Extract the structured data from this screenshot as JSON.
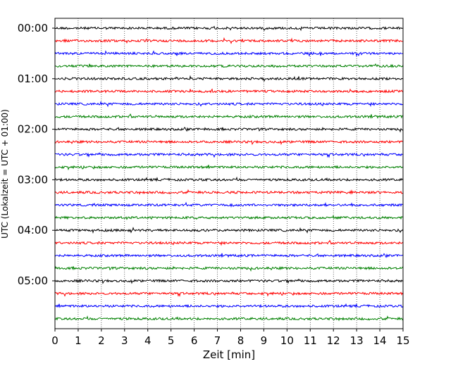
{
  "chart_data": {
    "type": "line",
    "title": "",
    "xlabel": "Zeit  [min]",
    "ylabel": "UTC (Lokalzeit = UTC + 01:00)",
    "xlim": [
      0,
      15
    ],
    "x_ticks": [
      "0",
      "1",
      "2",
      "3",
      "4",
      "5",
      "6",
      "7",
      "8",
      "9",
      "10",
      "11",
      "12",
      "13",
      "14",
      "15"
    ],
    "y_ticks": [
      "00:00",
      "01:00",
      "02:00",
      "03:00",
      "04:00",
      "05:00"
    ],
    "grid": "vertical dotted lines at each minute",
    "legend": "none",
    "trace_interval_min": 15,
    "trace_count": 24,
    "trace_color_cycle": [
      "#000000",
      "#ff0000",
      "#0000ff",
      "#008000"
    ],
    "series": [
      {
        "start": "00:00",
        "color": "#000000"
      },
      {
        "start": "00:15",
        "color": "#ff0000"
      },
      {
        "start": "00:30",
        "color": "#0000ff"
      },
      {
        "start": "00:45",
        "color": "#008000"
      },
      {
        "start": "01:00",
        "color": "#000000"
      },
      {
        "start": "01:15",
        "color": "#ff0000"
      },
      {
        "start": "01:30",
        "color": "#0000ff"
      },
      {
        "start": "01:45",
        "color": "#008000"
      },
      {
        "start": "02:00",
        "color": "#000000"
      },
      {
        "start": "02:15",
        "color": "#ff0000"
      },
      {
        "start": "02:30",
        "color": "#0000ff"
      },
      {
        "start": "02:45",
        "color": "#008000"
      },
      {
        "start": "03:00",
        "color": "#000000"
      },
      {
        "start": "03:15",
        "color": "#ff0000"
      },
      {
        "start": "03:30",
        "color": "#0000ff"
      },
      {
        "start": "03:45",
        "color": "#008000"
      },
      {
        "start": "04:00",
        "color": "#000000"
      },
      {
        "start": "04:15",
        "color": "#ff0000"
      },
      {
        "start": "04:30",
        "color": "#0000ff"
      },
      {
        "start": "04:45",
        "color": "#008000"
      },
      {
        "start": "05:00",
        "color": "#000000"
      },
      {
        "start": "05:15",
        "color": "#ff0000"
      },
      {
        "start": "05:30",
        "color": "#0000ff"
      },
      {
        "start": "05:45",
        "color": "#008000"
      }
    ]
  }
}
